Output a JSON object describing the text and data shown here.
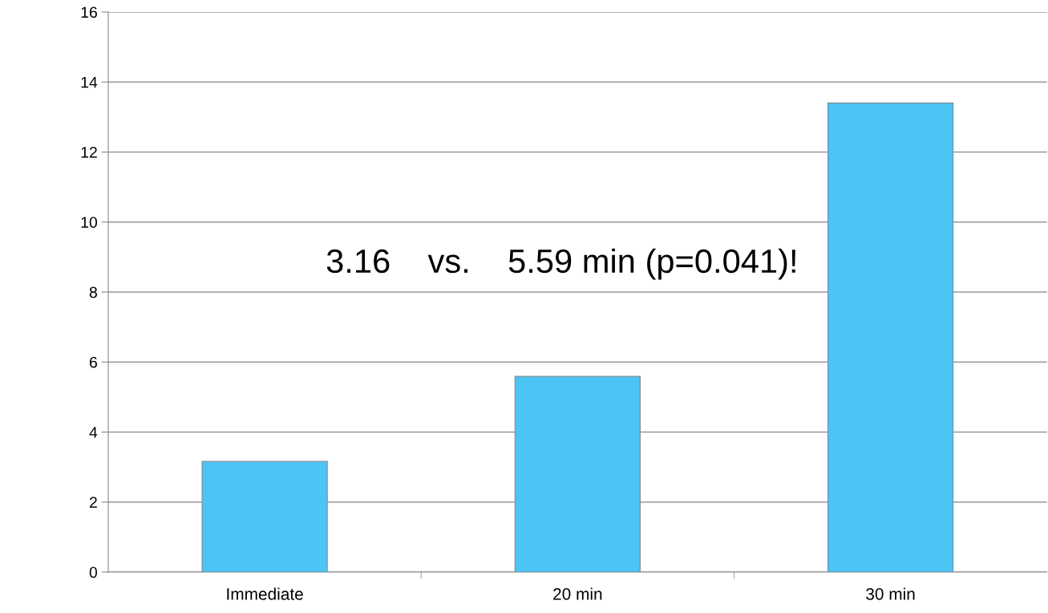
{
  "chart_data": {
    "type": "bar",
    "categories": [
      "Immediate",
      "20 min",
      "30 min"
    ],
    "values": [
      3.16,
      5.59,
      13.4
    ],
    "color": "#4cc4f4",
    "ylim": [
      0,
      16
    ],
    "yticks": [
      0,
      2,
      4,
      6,
      8,
      10,
      12,
      14,
      16
    ],
    "grid": "y",
    "legend": false,
    "annotations": [
      "3.16    vs.    5.59 min (p=0.041)!"
    ]
  }
}
